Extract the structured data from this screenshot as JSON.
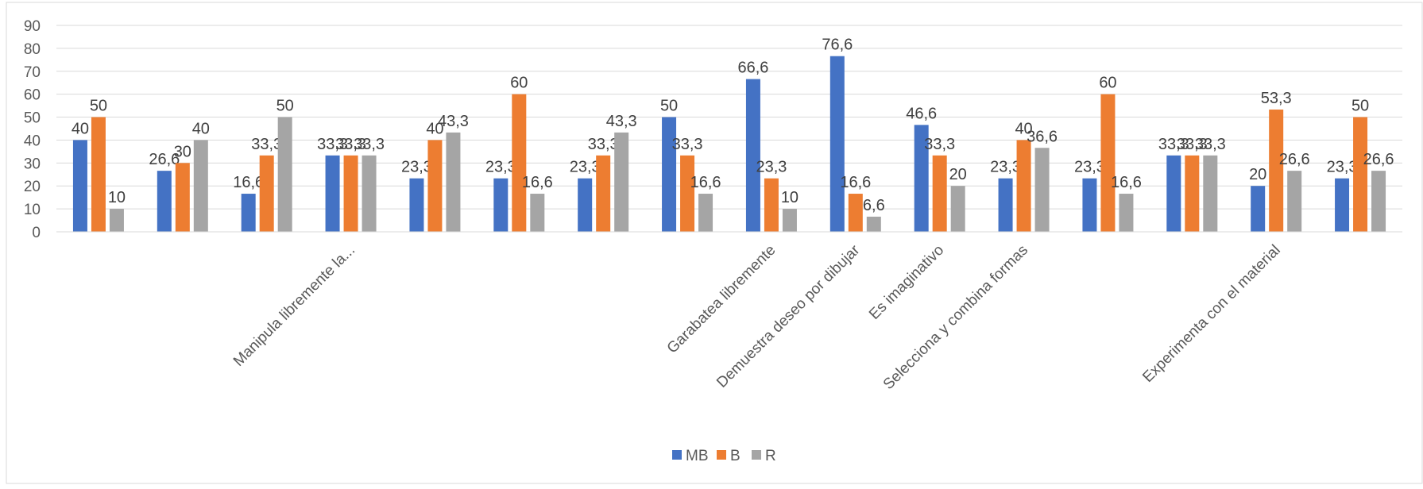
{
  "chart_data": {
    "type": "bar",
    "categories": [
      null,
      null,
      null,
      "Manipula libremente la...",
      null,
      null,
      null,
      null,
      "Garabatea libremente",
      "Demuestra deseo por dibujar",
      "Es imaginativo",
      "Selecciona y combina formas",
      null,
      null,
      "Experimenta con el material",
      null
    ],
    "series": [
      {
        "name": "MB",
        "color": "#4472c4",
        "values": [
          40,
          26.6,
          16.6,
          33.3,
          23.3,
          23.3,
          23.3,
          50,
          66.6,
          76.6,
          46.6,
          23.3,
          23.3,
          33.3,
          20,
          23.3
        ],
        "value_labels": [
          "40",
          "26,6",
          "16,6",
          "33,3",
          "23,3",
          "23,3",
          "23,3",
          "50",
          "66,6",
          "76,6",
          "46,6",
          "23,3",
          "23,3",
          "33,3",
          "20",
          "23,3"
        ]
      },
      {
        "name": "B",
        "color": "#ed7d31",
        "values": [
          50,
          30,
          33.3,
          33.3,
          40,
          60,
          33.3,
          33.3,
          23.3,
          16.6,
          33.3,
          40,
          60,
          33.3,
          53.3,
          50
        ],
        "value_labels": [
          "50",
          "30",
          "33,3",
          "33,3",
          "40",
          "60",
          "33,3",
          "33,3",
          "23,3",
          "16,6",
          "33,3",
          "40",
          "60",
          "33,3",
          "53,3",
          "50"
        ]
      },
      {
        "name": "R",
        "color": "#a5a5a5",
        "values": [
          10,
          40,
          50,
          33.3,
          43.3,
          16.6,
          43.3,
          16.6,
          10,
          6.6,
          20,
          36.6,
          16.6,
          33.3,
          26.6,
          26.6
        ],
        "value_labels": [
          "10",
          "40",
          "50",
          "33,3",
          "43,3",
          "16,6",
          "43,3",
          "16,6",
          "10",
          "6,6",
          "20",
          "36,6",
          "16,6",
          "33,3",
          "26,6",
          "26,6"
        ]
      }
    ],
    "ylim": [
      0,
      90
    ],
    "yticks": [
      0,
      10,
      20,
      30,
      40,
      50,
      60,
      70,
      80,
      90
    ],
    "grid": true,
    "legend": "bottom"
  }
}
